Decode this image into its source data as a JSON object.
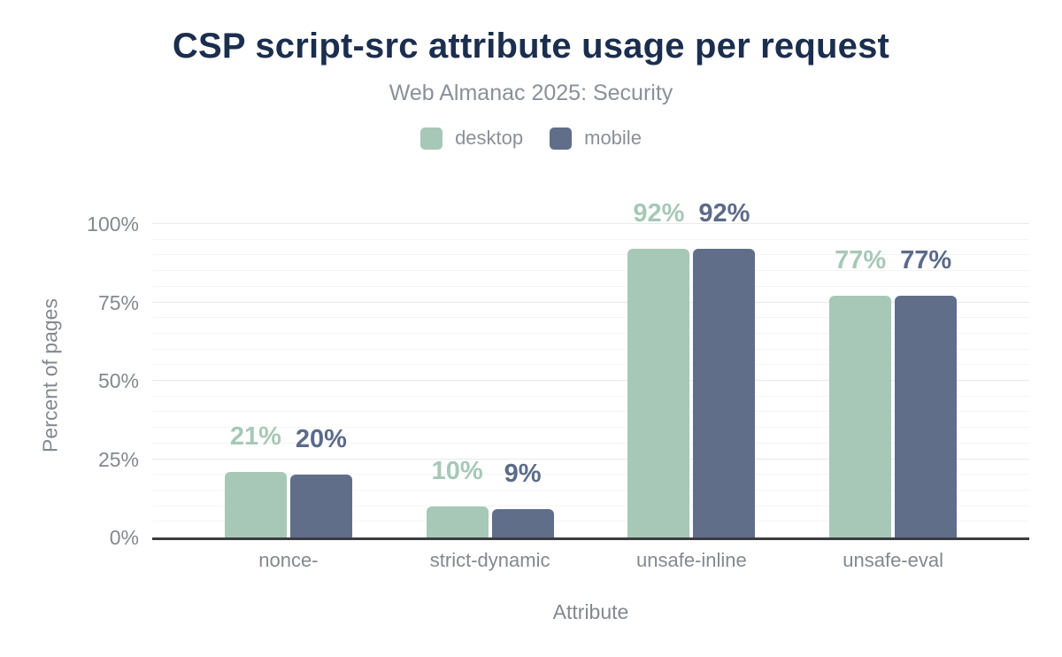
{
  "chart_data": {
    "type": "bar",
    "title": "CSP script-src attribute usage per request",
    "subtitle": "Web Almanac 2025: Security",
    "xlabel": "Attribute",
    "ylabel": "Percent of pages",
    "categories": [
      "nonce-",
      "strict-dynamic",
      "unsafe-inline",
      "unsafe-eval"
    ],
    "series": [
      {
        "name": "desktop",
        "color": "#a7c8b7",
        "label_color": "#a7c8b7",
        "values": [
          21,
          10,
          92,
          77
        ],
        "labels": [
          "21%",
          "10%",
          "92%",
          "77%"
        ]
      },
      {
        "name": "mobile",
        "color": "#606e8a",
        "label_color": "#5c6b89",
        "values": [
          20,
          9,
          92,
          77
        ],
        "labels": [
          "20%",
          "9%",
          "92%",
          "77%"
        ]
      }
    ],
    "ylim": [
      0,
      100
    ],
    "y_ticks": [
      {
        "value": 0,
        "label": "0%"
      },
      {
        "value": 25,
        "label": "25%"
      },
      {
        "value": 50,
        "label": "50%"
      },
      {
        "value": 75,
        "label": "75%"
      },
      {
        "value": 100,
        "label": "100%"
      }
    ],
    "y_minor_step": 5,
    "grid": true,
    "legend_position": "top"
  },
  "colors": {
    "title": "#1b2e4e",
    "subtitle": "#8b9099",
    "legend_text": "#8b9099",
    "tick_text": "#84888f",
    "axis_title_text": "#84888f",
    "axis_line": "#3c3d40",
    "grid_major": "#e9e9ea",
    "grid_minor": "#f5f5f6",
    "background": "#ffffff"
  }
}
